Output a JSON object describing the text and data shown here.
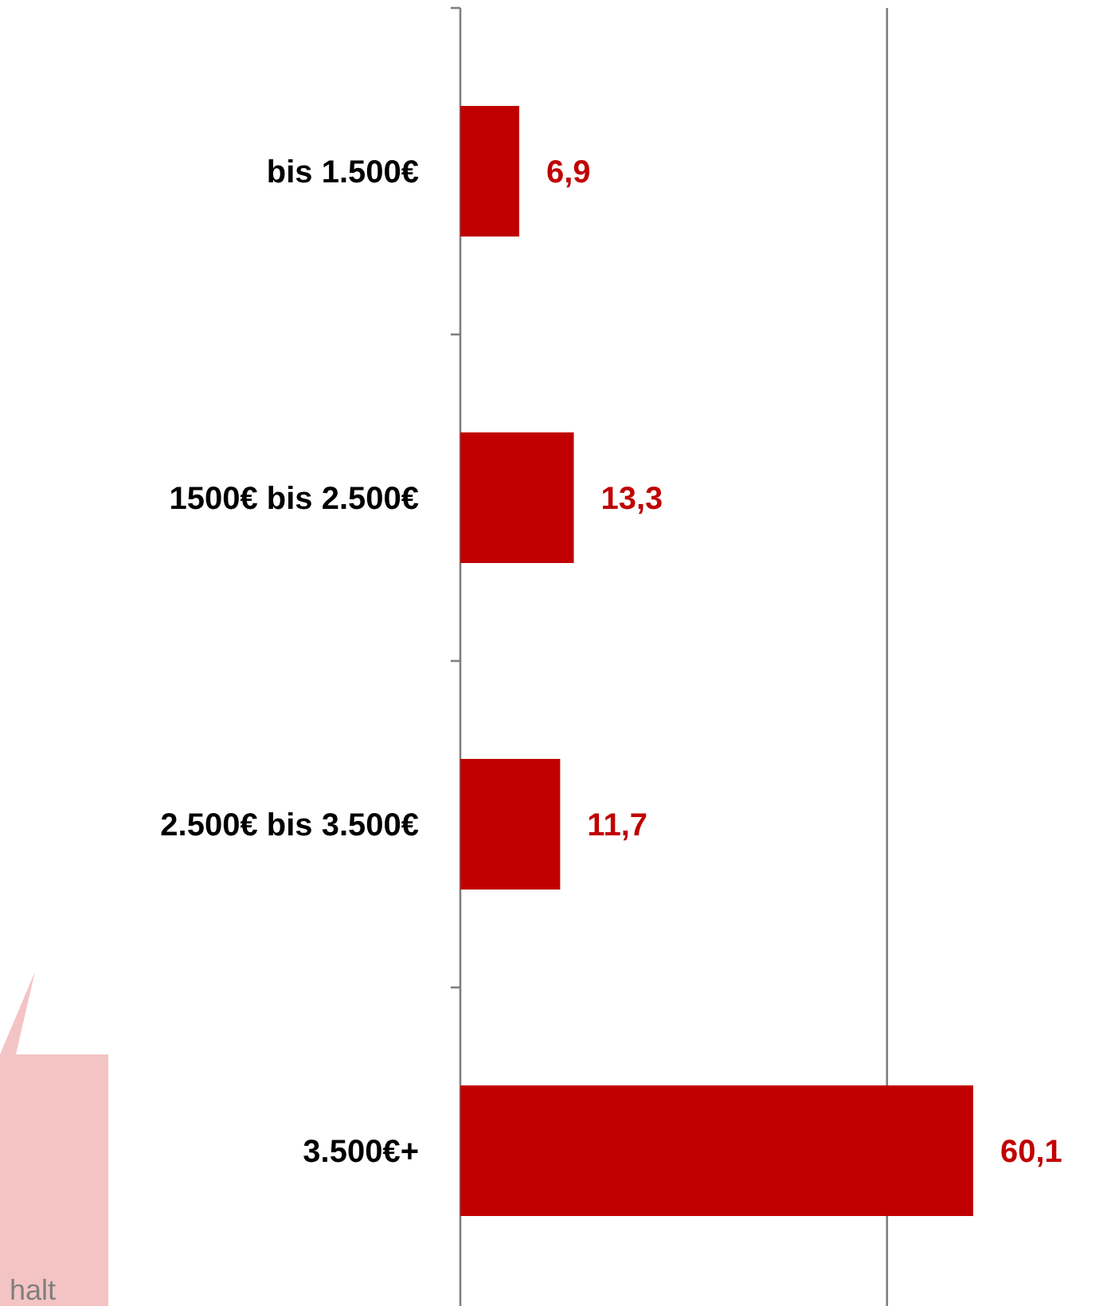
{
  "chart_data": {
    "type": "bar",
    "orientation": "horizontal",
    "categories": [
      "bis 1.500€",
      "1500€ bis 2.500€",
      "2.500€ bis 3.500€",
      "3.500€+"
    ],
    "values": [
      6.9,
      13.3,
      11.7,
      60.1
    ],
    "value_labels": [
      "6,9",
      "13,3",
      "11,7",
      "60,1"
    ],
    "color": "#c00000",
    "ref_lines": [
      {
        "axis": "x",
        "value": 50,
        "color": "#7f7f7f"
      }
    ],
    "annotations": [
      "halt"
    ]
  }
}
